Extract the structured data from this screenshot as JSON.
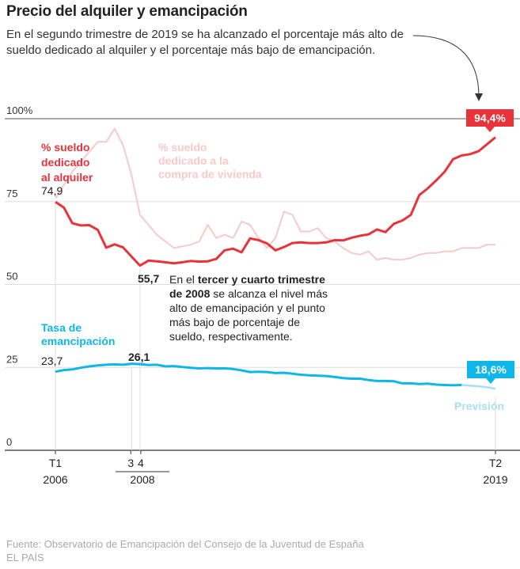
{
  "title": "Precio del alquiler y emancipación",
  "subtitle": "En el segundo trimestre de 2019 se ha alcanzado el porcentaje más alto de sueldo dedicado al alquiler y el porcentaje más bajo de emancipación.",
  "source": "Fuente: Observatorio de Emancipación del Consejo de la Juventud de España",
  "brand": "EL PAÍS",
  "colors": {
    "rent": "#e8333b",
    "purchase": "#f8c9c9",
    "emancipation": "#0fb6ea",
    "forecast": "#a9dff3"
  },
  "chart_data": {
    "type": "line",
    "ylim": [
      0,
      100
    ],
    "yticks": [
      {
        "value": 0,
        "label": "0"
      },
      {
        "value": 25,
        "label": "25"
      },
      {
        "value": 50,
        "label": "50"
      },
      {
        "value": 75,
        "label": "75"
      },
      {
        "value": 100,
        "label": "100%"
      }
    ],
    "x_start": "2006-T1",
    "x_end": "2019-T2",
    "xticks": [
      {
        "label": "T1",
        "year": "2006"
      },
      {
        "label": "3",
        "year": ""
      },
      {
        "label": "4",
        "year": ""
      },
      {
        "label": "T2",
        "year": "2019"
      }
    ],
    "year_2008": "2008",
    "series": [
      {
        "key": "rent",
        "label": "% sueldo dedicado al alquiler",
        "label_lines": [
          "% sueldo",
          "dedicado",
          "al alquiler"
        ],
        "start_label": "74,9",
        "end_label": "94,4%",
        "min_label": "55,7",
        "values": [
          74.9,
          73.2,
          68.5,
          67.8,
          67.9,
          66.5,
          61.1,
          62.1,
          61.2,
          58.4,
          55.7,
          57.2,
          57.0,
          56.7,
          56.4,
          56.7,
          57.1,
          56.9,
          57.0,
          57.7,
          60.3,
          60.8,
          59.7,
          63.9,
          63.4,
          62.4,
          60.3,
          61.3,
          62.5,
          62.7,
          62.5,
          62.5,
          62.7,
          63.4,
          63.3,
          64.1,
          64.7,
          65.1,
          66.6,
          65.8,
          68.3,
          69.3,
          71.0,
          77.0,
          79.0,
          81.4,
          84.0,
          87.8,
          88.9,
          89.3,
          90.2,
          92.3,
          94.4
        ]
      },
      {
        "key": "purchase",
        "label": "% sueldo dedicado a la compra de vivienda",
        "label_lines": [
          "% sueldo",
          "dedicado a la",
          "compra de vivienda"
        ],
        "values": [
          76.0,
          80.0,
          84.0,
          87.0,
          90.0,
          93.0,
          93.0,
          97.0,
          92.0,
          83.0,
          71.0,
          68.0,
          65.0,
          63.0,
          61.0,
          61.5,
          62.0,
          63.0,
          68.0,
          64.0,
          65.0,
          64.0,
          69.0,
          68.0,
          64.0,
          61.0,
          64.0,
          72.0,
          71.0,
          66.0,
          66.0,
          67.0,
          64.0,
          63.0,
          61.0,
          59.5,
          59.0,
          60.0,
          57.5,
          58.0,
          57.5,
          57.5,
          58.0,
          59.0,
          59.5,
          59.5,
          60.0,
          60.0,
          61.0,
          61.0,
          61.0,
          62.0,
          62.0
        ]
      },
      {
        "key": "emancipation",
        "label": "Tasa de emancipación",
        "label_lines": [
          "Tasa de",
          "emancipación"
        ],
        "start_label": "23,7",
        "peak_label": "26,1",
        "end_label": "18,6%",
        "values": [
          23.7,
          24.2,
          24.4,
          24.9,
          25.3,
          25.6,
          25.8,
          25.9,
          25.8,
          26.1,
          26.0,
          25.7,
          25.8,
          25.3,
          25.4,
          25.1,
          24.9,
          24.7,
          24.8,
          24.7,
          24.7,
          24.5,
          24.1,
          23.6,
          23.7,
          23.6,
          23.3,
          23.4,
          23.1,
          22.8,
          22.6,
          22.5,
          22.4,
          22.1,
          21.8,
          21.6,
          21.6,
          21.2,
          20.9,
          20.9,
          20.8,
          20.2,
          20.2,
          20.0,
          20.1,
          19.8,
          19.7,
          19.6,
          19.7
        ]
      },
      {
        "key": "forecast",
        "label": "Previsión",
        "start_index": 48,
        "values": [
          19.7,
          19.5,
          19.3,
          19.0,
          18.6
        ]
      }
    ],
    "annotation": {
      "text": "En el tercer y cuarto trimestre de 2008 se alcanza el nivel más alto de emancipación y el punto más bajo de porcentaje de sueldo, respectivamente.",
      "lines": [
        [
          {
            "t": "En el ",
            "b": false
          },
          {
            "t": "tercer y cuarto trimestre",
            "b": true
          }
        ],
        [
          {
            "t": "de 2008",
            "b": true
          },
          {
            "t": " se alcanza el nivel más",
            "b": false
          }
        ],
        [
          {
            "t": "alto de emancipación y el punto",
            "b": false
          }
        ],
        [
          {
            "t": "más bajo de porcentaje de",
            "b": false
          }
        ],
        [
          {
            "t": "sueldo, respectivamente.",
            "b": false
          }
        ]
      ]
    }
  }
}
